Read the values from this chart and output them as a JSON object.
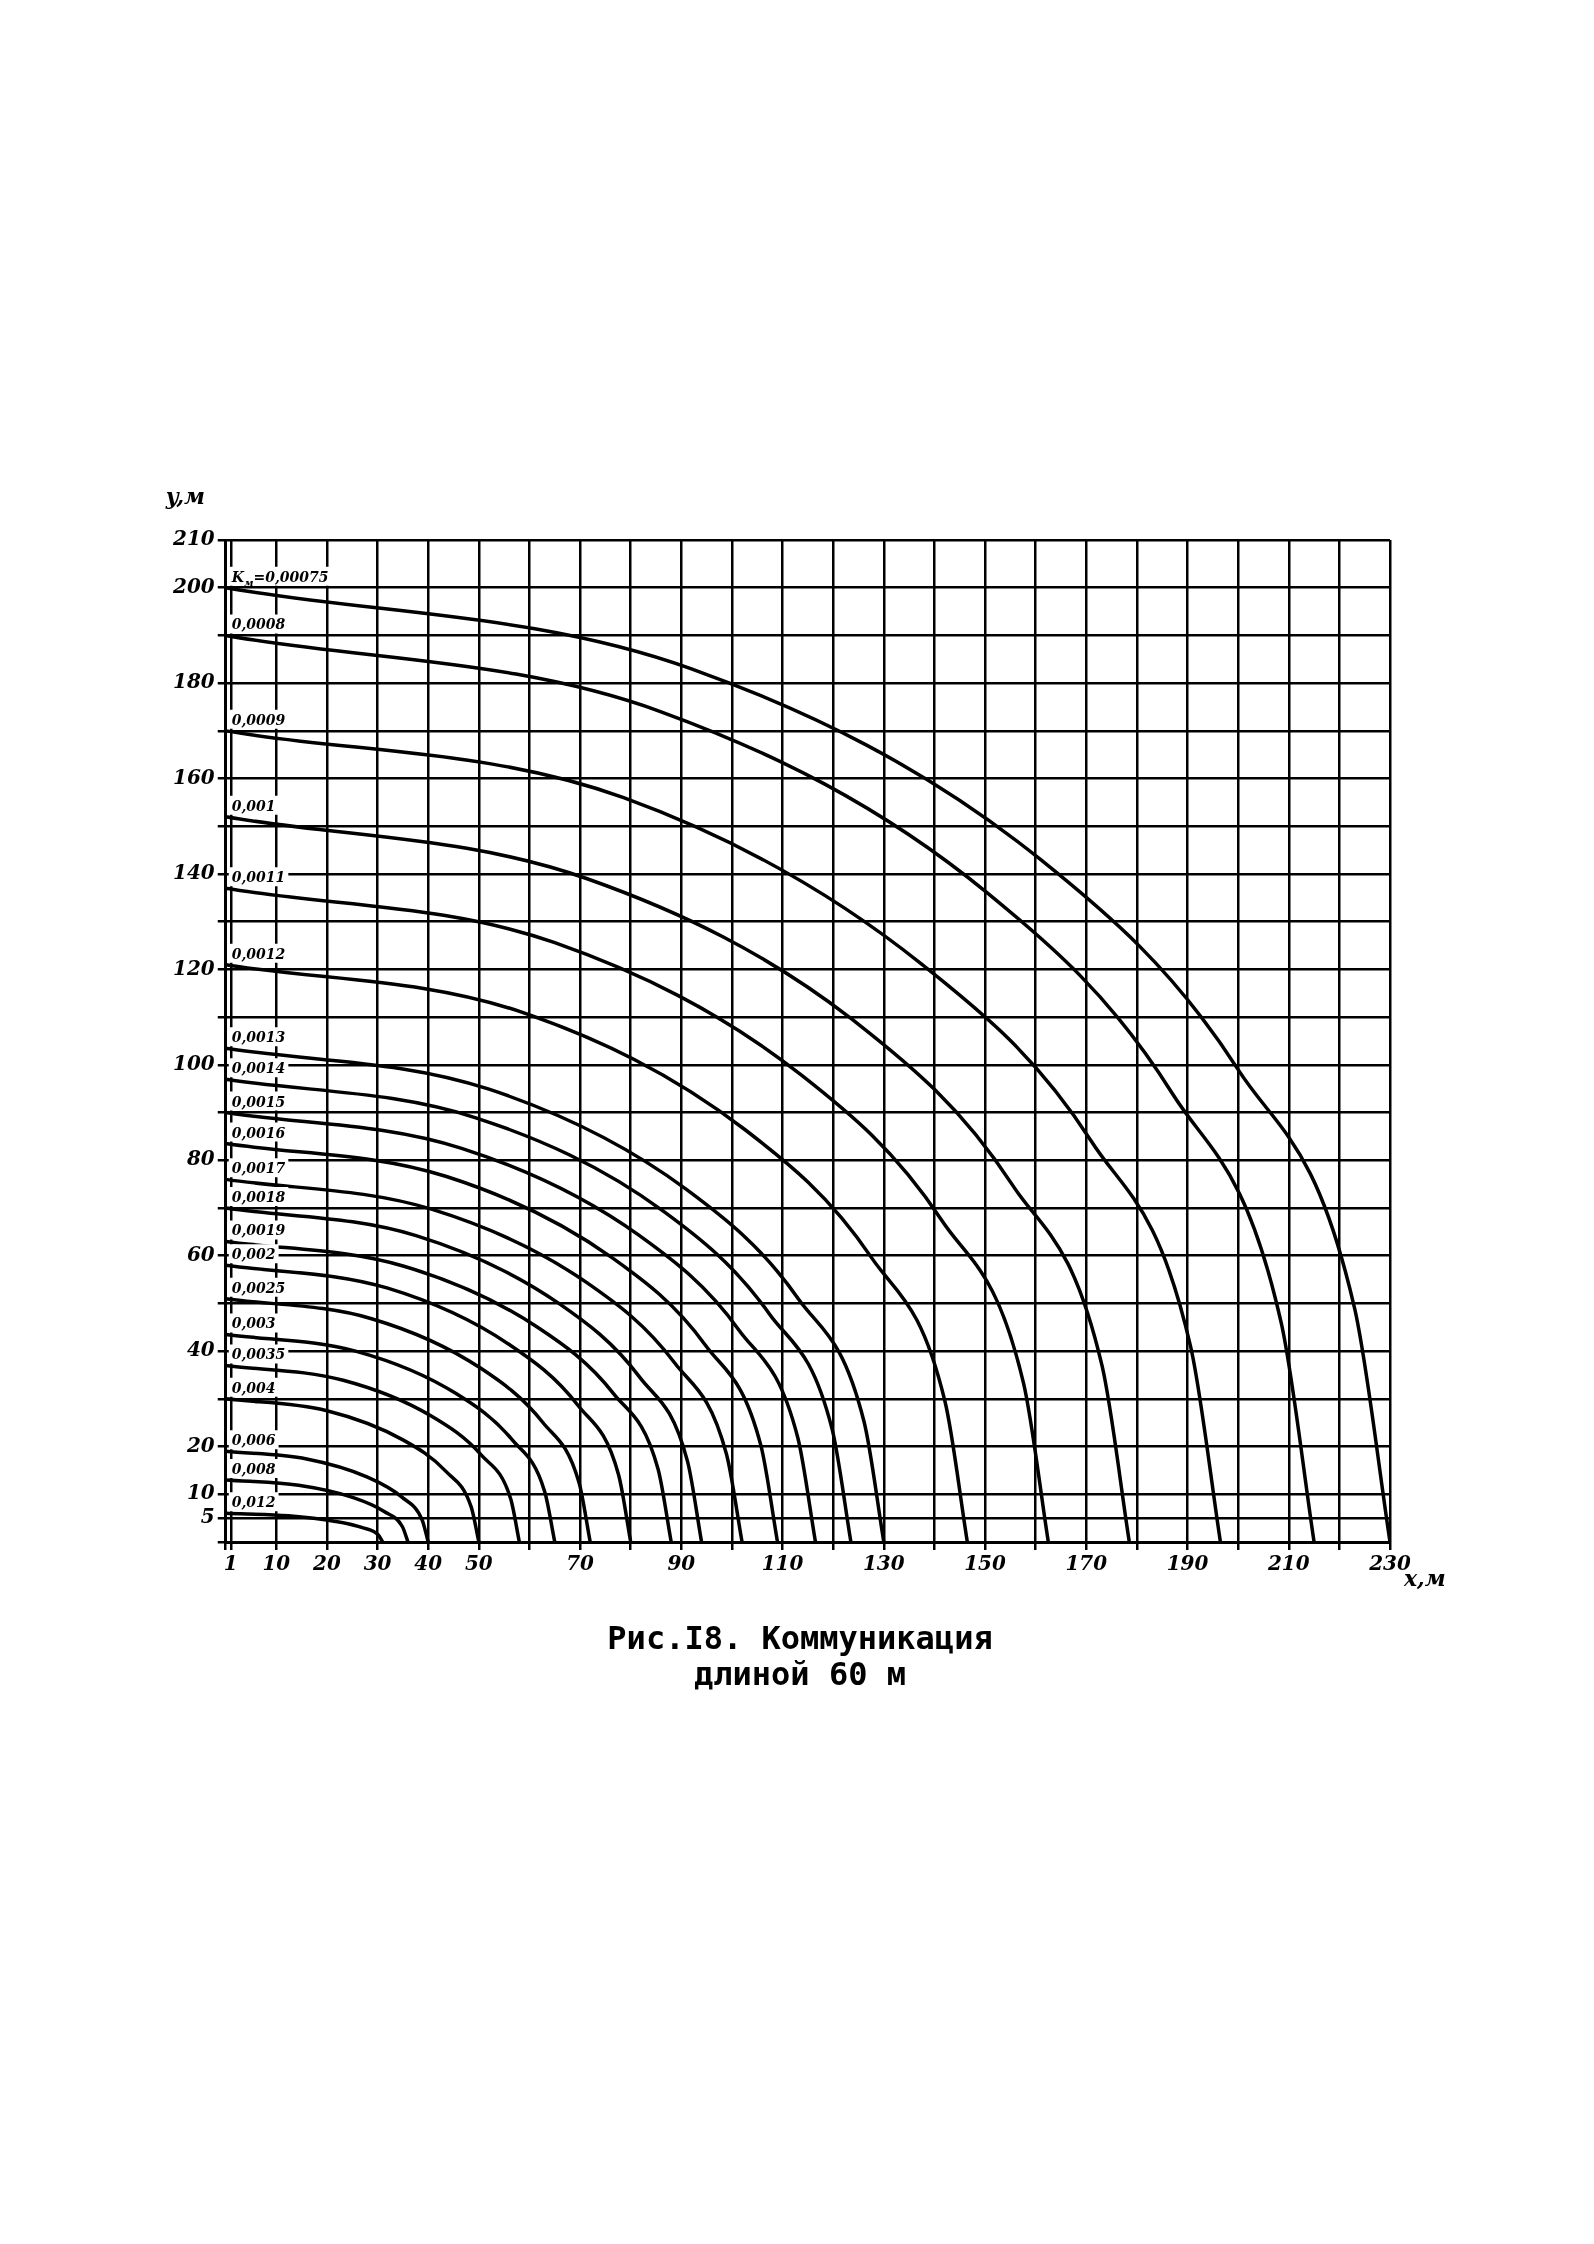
{
  "chart_data": {
    "type": "line",
    "title": "Рис.I8. Коммуникация длиной 60 м",
    "xlabel": "x,м",
    "ylabel": "y,м",
    "xlim": [
      0,
      230
    ],
    "ylim": [
      0,
      210
    ],
    "xticks": [
      {
        "value": 0,
        "label": null
      },
      1,
      10,
      20,
      30,
      40,
      50,
      {
        "value": 60,
        "label": null
      },
      70,
      {
        "value": 80,
        "label": null
      },
      90,
      {
        "value": 100,
        "label": null
      },
      110,
      {
        "value": 120,
        "label": null
      },
      130,
      {
        "value": 140,
        "label": null
      },
      150,
      {
        "value": 160,
        "label": null
      },
      170,
      {
        "value": 180,
        "label": null
      },
      190,
      {
        "value": 200,
        "label": null
      },
      210,
      {
        "value": 220,
        "label": null
      },
      230
    ],
    "yticks": [
      {
        "value": 0,
        "label": null
      },
      5,
      10,
      20,
      {
        "value": 30,
        "label": null
      },
      40,
      {
        "value": 50,
        "label": null
      },
      60,
      {
        "value": 70,
        "label": null
      },
      80,
      {
        "value": 90,
        "label": null
      },
      100,
      {
        "value": 110,
        "label": null
      },
      120,
      {
        "value": 130,
        "label": null
      },
      140,
      {
        "value": 150,
        "label": null
      },
      160,
      {
        "value": 170,
        "label": null
      },
      180,
      {
        "value": 190,
        "label": null
      },
      200,
      210
    ],
    "grid": true,
    "legend": false,
    "marker": "none",
    "line_style": "solid",
    "series": [
      {
        "name": "K$_{м}$=0,00075",
        "color": "#000000",
        "x": [
          0,
          92,
          161,
          200,
          223,
          230
        ],
        "values": [
          200,
          183,
          143,
          99,
          49,
          0
        ]
      },
      {
        "name": "0,0008",
        "color": "#000000",
        "x": [
          0,
          86,
          150.5,
          187,
          208.5,
          215
        ],
        "values": [
          190,
          174,
          136,
          94,
          46,
          0
        ]
      },
      {
        "name": "0,0009",
        "color": "#000000",
        "x": [
          0,
          78.6,
          137.6,
          171,
          190.6,
          196.5
        ],
        "values": [
          170,
          156,
          121,
          84,
          41,
          0
        ]
      },
      {
        "name": "0,001",
        "color": "#000000",
        "x": [
          0,
          71.4,
          125,
          155.3,
          173.1,
          178.5
        ],
        "values": [
          152,
          139,
          108.5,
          75,
          37,
          0
        ]
      },
      {
        "name": "0,0011",
        "color": "#000000",
        "x": [
          0,
          65,
          113.8,
          141.4,
          157.6,
          162.5
        ],
        "values": [
          137,
          125.6,
          97.8,
          67.5,
          33.3,
          0
        ]
      },
      {
        "name": "0,0012",
        "color": "#000000",
        "x": [
          0,
          58.6,
          102.6,
          127.5,
          142.1,
          146.5
        ],
        "values": [
          121,
          111,
          86.4,
          59.7,
          29.4,
          0
        ]
      },
      {
        "name": "0,0013",
        "color": "#000000",
        "x": [
          0,
          52,
          91,
          113.1,
          126.1,
          130
        ],
        "values": [
          103.5,
          94.9,
          73.9,
          51,
          25.2,
          0
        ]
      },
      {
        "name": "0,0014",
        "color": "#000000",
        "x": [
          0,
          49.4,
          86.5,
          107.4,
          119.8,
          123.5
        ],
        "values": [
          97,
          88.9,
          69.3,
          47.8,
          23.6,
          0
        ]
      },
      {
        "name": "0,0015",
        "color": "#000000",
        "x": [
          0,
          46.6,
          81.6,
          101.4,
          113,
          116.5
        ],
        "values": [
          90,
          82.5,
          64.3,
          44.4,
          21.9,
          0
        ]
      },
      {
        "name": "0,0016",
        "color": "#000000",
        "x": [
          0,
          43.6,
          76.3,
          94.8,
          105.7,
          109
        ],
        "values": [
          83.5,
          76.6,
          59.6,
          41.2,
          20.3,
          0
        ]
      },
      {
        "name": "0,0017",
        "color": "#000000",
        "x": [
          0,
          40.8,
          71.4,
          88.7,
          98.9,
          102
        ],
        "values": [
          76,
          69.7,
          54.3,
          37.5,
          18.5,
          0
        ]
      },
      {
        "name": "0,0018",
        "color": "#000000",
        "x": [
          0,
          37.6,
          65.8,
          81.8,
          91.2,
          94
        ],
        "values": [
          70,
          64.2,
          50,
          34.5,
          17,
          0
        ]
      },
      {
        "name": "0,0019",
        "color": "#000000",
        "x": [
          0,
          35.2,
          61.6,
          76.6,
          85.4,
          88
        ],
        "values": [
          63,
          57.8,
          45,
          31.1,
          15.3,
          0
        ]
      },
      {
        "name": "0,002",
        "color": "#000000",
        "x": [
          0,
          32,
          56,
          69.6,
          77.6,
          80
        ],
        "values": [
          58,
          53.2,
          41.4,
          28.6,
          14.1,
          0
        ]
      },
      {
        "name": "0,0025",
        "color": "#000000",
        "x": [
          0,
          28.8,
          50.4,
          62.6,
          69.8,
          72
        ],
        "values": [
          51,
          46.8,
          36.4,
          25.1,
          12.4,
          0
        ]
      },
      {
        "name": "0,003",
        "color": "#000000",
        "x": [
          0,
          26,
          45.5,
          56.6,
          63,
          65
        ],
        "values": [
          43.5,
          39.9,
          31.1,
          21.4,
          10.6,
          0
        ]
      },
      {
        "name": "0,0035",
        "color": "#000000",
        "x": [
          0,
          23.2,
          40.6,
          50.5,
          56.3,
          58
        ],
        "values": [
          37,
          33.9,
          26.4,
          18.2,
          9,
          0
        ]
      },
      {
        "name": "0,004",
        "color": "#000000",
        "x": [
          0,
          20,
          35,
          43.5,
          48.5,
          50
        ],
        "values": [
          30,
          27.5,
          21.4,
          14.8,
          7.3,
          0
        ]
      },
      {
        "name": "0,006",
        "color": "#000000",
        "x": [
          0,
          16,
          28,
          34.8,
          38.8,
          40
        ],
        "values": [
          19,
          17.4,
          13.6,
          9.4,
          4.6,
          0
        ]
      },
      {
        "name": "0,008",
        "color": "#000000",
        "x": [
          0,
          14.4,
          25.2,
          31.3,
          34.9,
          36
        ],
        "values": [
          13,
          11.9,
          9.3,
          6.4,
          3.2,
          0
        ]
      },
      {
        "name": "0,012",
        "color": "#000000",
        "x": [
          0,
          12.4,
          21.7,
          27,
          30.1,
          31
        ],
        "values": [
          6,
          5.5,
          4.3,
          3,
          1.5,
          0
        ]
      }
    ]
  }
}
